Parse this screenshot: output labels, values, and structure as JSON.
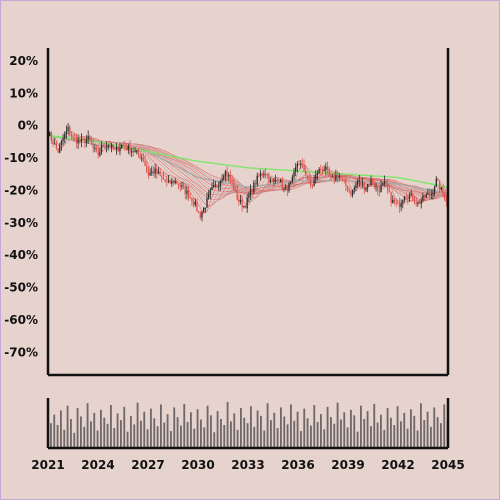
{
  "chart_data": [
    {
      "type": "candlestick",
      "title": "",
      "xlabel": "",
      "ylabel": "",
      "xlim": [
        2021,
        2045
      ],
      "ylim": [
        -77,
        24
      ],
      "y_ticks": [
        "20%",
        "10%",
        "0%",
        "-10%",
        "-20%",
        "-30%",
        "-40%",
        "-50%",
        "-60%",
        "-70%"
      ],
      "y_tick_values": [
        20,
        10,
        0,
        -10,
        -20,
        -30,
        -40,
        -50,
        -60,
        -70
      ],
      "x_ticks": [
        "2021",
        "2024",
        "2027",
        "2030",
        "2033",
        "2036",
        "2039",
        "2042",
        "2045"
      ],
      "x_tick_values": [
        2021,
        2024,
        2027,
        2030,
        2033,
        2036,
        2039,
        2042,
        2045
      ],
      "grid": false,
      "price_path": [
        [
          2021.0,
          -2
        ],
        [
          2021.3,
          -5
        ],
        [
          2021.6,
          -8
        ],
        [
          2021.9,
          -4
        ],
        [
          2022.2,
          -1
        ],
        [
          2022.5,
          -4
        ],
        [
          2023.0,
          -5
        ],
        [
          2023.4,
          -4
        ],
        [
          2023.7,
          -7
        ],
        [
          2024.0,
          -9
        ],
        [
          2024.3,
          -6
        ],
        [
          2024.7,
          -6
        ],
        [
          2025.0,
          -8
        ],
        [
          2025.4,
          -6
        ],
        [
          2025.8,
          -7
        ],
        [
          2026.2,
          -8
        ],
        [
          2026.7,
          -10
        ],
        [
          2027.0,
          -15
        ],
        [
          2027.4,
          -14
        ],
        [
          2027.8,
          -16
        ],
        [
          2028.2,
          -18
        ],
        [
          2028.6,
          -17
        ],
        [
          2029.0,
          -19
        ],
        [
          2029.4,
          -21
        ],
        [
          2029.8,
          -24
        ],
        [
          2030.1,
          -28
        ],
        [
          2030.4,
          -25
        ],
        [
          2030.8,
          -20
        ],
        [
          2031.2,
          -18
        ],
        [
          2031.6,
          -14
        ],
        [
          2032.0,
          -17
        ],
        [
          2032.4,
          -23
        ],
        [
          2032.8,
          -25
        ],
        [
          2033.2,
          -20
        ],
        [
          2033.6,
          -16
        ],
        [
          2034.0,
          -14
        ],
        [
          2034.4,
          -18
        ],
        [
          2034.8,
          -16
        ],
        [
          2035.2,
          -20
        ],
        [
          2035.6,
          -18
        ],
        [
          2036.0,
          -11
        ],
        [
          2036.4,
          -14
        ],
        [
          2036.8,
          -19
        ],
        [
          2037.2,
          -14
        ],
        [
          2037.6,
          -13
        ],
        [
          2038.0,
          -17
        ],
        [
          2038.4,
          -15
        ],
        [
          2038.8,
          -18
        ],
        [
          2039.2,
          -21
        ],
        [
          2039.6,
          -17
        ],
        [
          2040.0,
          -19
        ],
        [
          2040.4,
          -17
        ],
        [
          2040.8,
          -20
        ],
        [
          2041.2,
          -18
        ],
        [
          2041.6,
          -23
        ],
        [
          2042.0,
          -25
        ],
        [
          2042.4,
          -21
        ],
        [
          2042.8,
          -22
        ],
        [
          2043.2,
          -24
        ],
        [
          2043.6,
          -22
        ],
        [
          2044.0,
          -21
        ],
        [
          2044.3,
          -17
        ],
        [
          2044.6,
          -20
        ],
        [
          2045.0,
          -24
        ]
      ],
      "moving_average_green": [
        [
          2021.0,
          -3
        ],
        [
          2024.0,
          -5
        ],
        [
          2027.0,
          -8
        ],
        [
          2030.0,
          -11
        ],
        [
          2033.0,
          -13
        ],
        [
          2036.0,
          -14
        ],
        [
          2039.0,
          -15
        ],
        [
          2042.0,
          -16
        ],
        [
          2045.0,
          -19
        ]
      ],
      "moving_average_gray": [
        [
          2021.0,
          -3
        ],
        [
          2024.0,
          -6
        ],
        [
          2027.0,
          -8
        ],
        [
          2030.0,
          -16
        ],
        [
          2033.0,
          -19
        ],
        [
          2036.0,
          -17
        ],
        [
          2039.0,
          -17
        ],
        [
          2042.0,
          -18
        ],
        [
          2045.0,
          -21
        ]
      ],
      "volume": [
        41,
        55,
        38,
        62,
        30,
        70,
        48,
        25,
        66,
        52,
        35,
        74,
        44,
        58,
        29,
        63,
        50,
        40,
        71,
        33,
        57,
        46,
        68,
        27,
        53,
        39,
        75,
        45,
        60,
        31,
        65,
        49,
        36,
        72,
        42,
        56,
        28,
        67,
        51,
        37,
        73,
        43,
        59,
        32,
        64,
        47,
        34,
        70,
        54,
        26,
        61,
        48,
        38,
        76,
        44,
        57,
        30,
        66,
        50,
        41,
        69,
        35,
        62,
        53,
        29,
        74,
        46,
        58,
        33,
        67,
        52,
        39,
        72,
        45,
        60,
        28,
        65,
        49,
        37,
        71,
        43,
        56,
        31,
        68,
        51,
        40,
        75,
        47,
        59,
        34,
        63,
        54,
        27,
        70,
        48,
        61,
        36,
        73,
        42,
        55,
        30,
        66,
        50,
        38,
        69,
        44,
        58,
        32,
        64,
        53,
        29,
        74,
        46,
        60,
        35,
        67,
        51,
        41,
        72,
        45
      ],
      "colors": {
        "background": "#e7d3cd",
        "up_candle": "#2b2b2b",
        "down_candle": "#e0524c",
        "ma_green": "#7ee66a",
        "ma_gray": "#a8a8a8",
        "fan_red": "#ef5350",
        "volume": "#6e6868",
        "axis": "#111111"
      }
    }
  ]
}
